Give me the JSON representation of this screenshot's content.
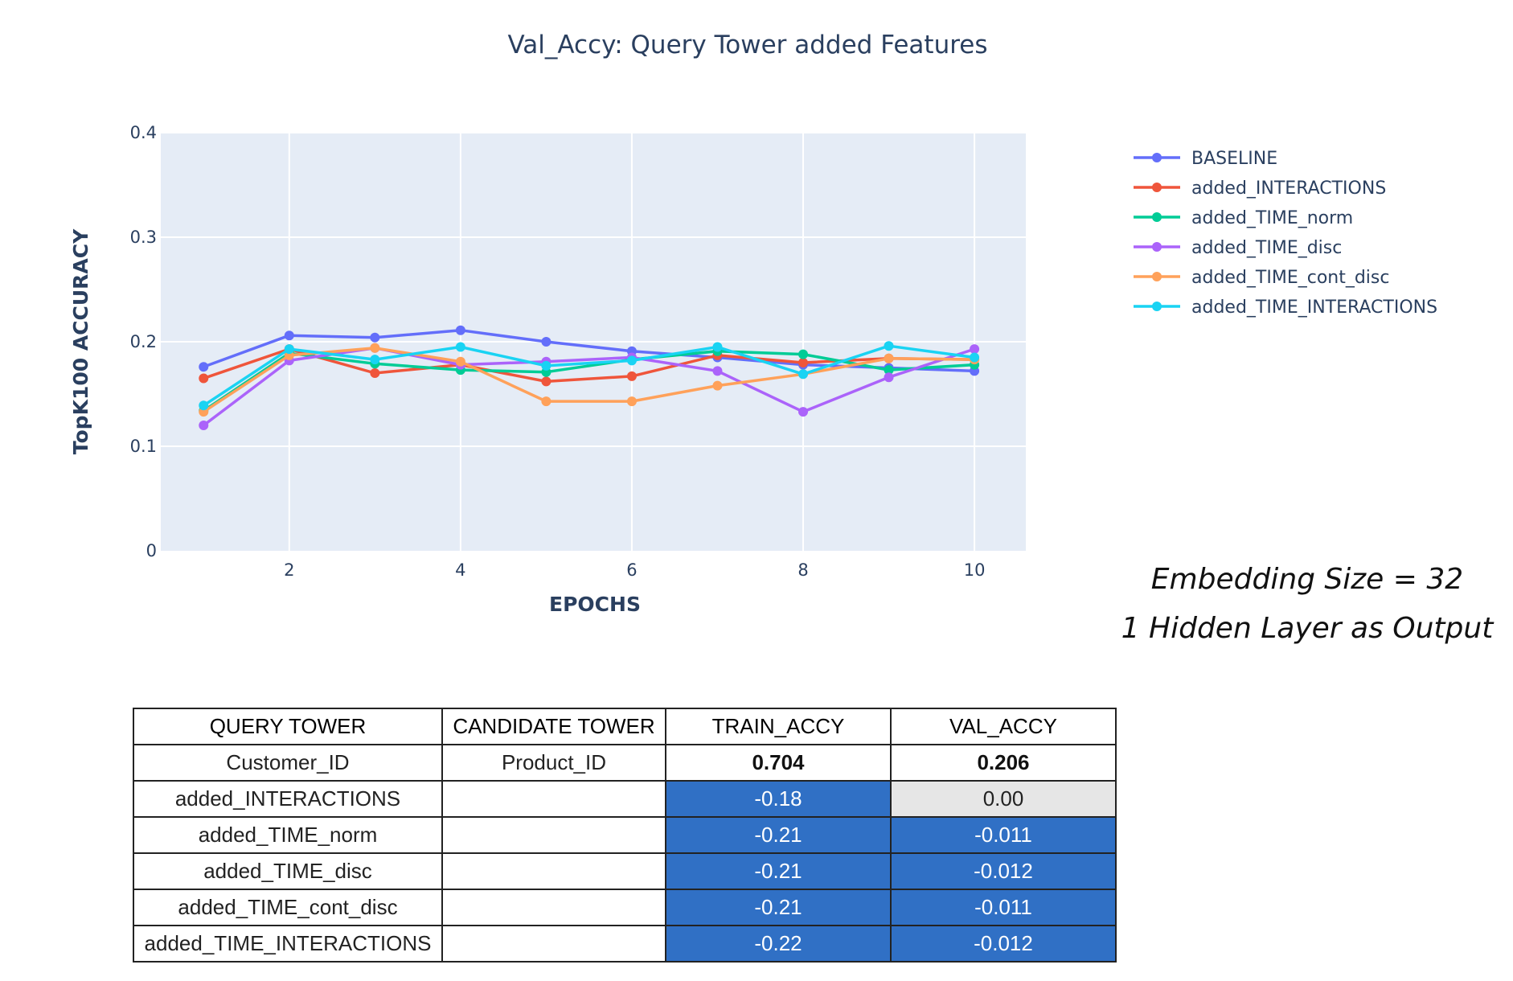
{
  "chart_data": {
    "type": "line",
    "title": "Val_Accy: Query Tower added Features",
    "xlabel": "EPOCHS",
    "ylabel": "TopK100 ACCURACY",
    "xlim": [
      0.5,
      10.6
    ],
    "ylim": [
      0,
      0.4
    ],
    "x_ticks": [
      2,
      4,
      6,
      8,
      10
    ],
    "y_ticks": [
      0,
      0.1,
      0.2,
      0.3,
      0.4
    ],
    "y_tick_labels": [
      "0",
      "0.1",
      "0.2",
      "0.3",
      "0.4"
    ],
    "grid": true,
    "legend_position": "right",
    "x": [
      1,
      2,
      3,
      4,
      5,
      6,
      7,
      8,
      9,
      10
    ],
    "series": [
      {
        "name": "BASELINE",
        "color": "#636efa",
        "values": [
          0.176,
          0.206,
          0.204,
          0.211,
          0.2,
          0.191,
          0.185,
          0.178,
          0.175,
          0.172
        ]
      },
      {
        "name": "added_INTERACTIONS",
        "color": "#ef553b",
        "values": [
          0.165,
          0.193,
          0.17,
          0.178,
          0.162,
          0.167,
          0.187,
          0.18,
          0.184,
          0.183
        ]
      },
      {
        "name": "added_TIME_norm",
        "color": "#00cc96",
        "values": [
          0.134,
          0.189,
          0.179,
          0.173,
          0.171,
          0.183,
          0.191,
          0.188,
          0.173,
          0.178
        ]
      },
      {
        "name": "added_TIME_disc",
        "color": "#ab63fa",
        "values": [
          0.12,
          0.182,
          0.194,
          0.178,
          0.181,
          0.185,
          0.172,
          0.133,
          0.166,
          0.193
        ]
      },
      {
        "name": "added_TIME_cont_disc",
        "color": "#ffa15a",
        "values": [
          0.133,
          0.187,
          0.194,
          0.181,
          0.143,
          0.143,
          0.158,
          0.169,
          0.184,
          0.183
        ]
      },
      {
        "name": "added_TIME_INTERACTIONS",
        "color": "#19d3f3",
        "values": [
          0.139,
          0.193,
          0.183,
          0.195,
          0.177,
          0.182,
          0.195,
          0.169,
          0.196,
          0.185
        ]
      }
    ]
  },
  "notes": {
    "line1": "Embedding Size = 32",
    "line2": "1 Hidden Layer as Output"
  },
  "table": {
    "headers": [
      "QUERY TOWER",
      "CANDIDATE TOWER",
      "TRAIN_ACCY",
      "VAL_ACCY"
    ],
    "rows": [
      [
        "Customer_ID",
        "Product_ID",
        "0.704",
        "0.206"
      ],
      [
        "added_INTERACTIONS",
        "",
        "-0.18",
        "0.00"
      ],
      [
        "added_TIME_norm",
        "",
        "-0.21",
        "-0.011"
      ],
      [
        "added_TIME_disc",
        "",
        "-0.21",
        "-0.012"
      ],
      [
        "added_TIME_cont_disc",
        "",
        "-0.21",
        "-0.011"
      ],
      [
        "added_TIME_INTERACTIONS",
        "",
        "-0.22",
        "-0.012"
      ]
    ],
    "cell_colors": {
      "highlight_blue": "#3070c5",
      "neutral_grey": "#e6e6e6"
    }
  }
}
